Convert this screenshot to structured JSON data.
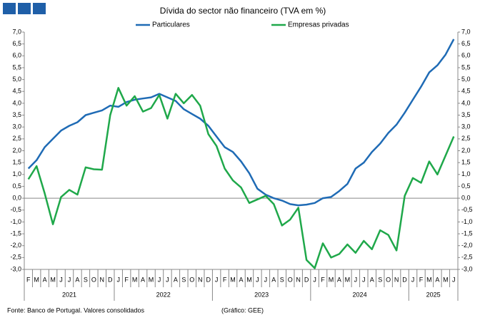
{
  "chart_data": {
    "type": "line",
    "title": "Dívida do sector não financeiro (TVA em %)",
    "categories": [
      "F",
      "M",
      "A",
      "M",
      "J",
      "J",
      "A",
      "S",
      "O",
      "N",
      "D",
      "J",
      "F",
      "M",
      "A",
      "M",
      "J",
      "J",
      "A",
      "S",
      "O",
      "N",
      "D",
      "J",
      "F",
      "M",
      "A",
      "M",
      "J",
      "J",
      "A",
      "S",
      "O",
      "N",
      "D",
      "J",
      "F",
      "M",
      "A",
      "M",
      "J",
      "J",
      "A",
      "S",
      "O",
      "N",
      "D",
      "J",
      "F",
      "M",
      "A",
      "M",
      "J"
    ],
    "years": [
      "2021",
      "2022",
      "2023",
      "2024",
      "2025"
    ],
    "series": [
      {
        "name": "Particulares",
        "color": "#1f6bb5",
        "values": [
          1.25,
          1.6,
          2.15,
          2.5,
          2.85,
          3.05,
          3.2,
          3.5,
          3.6,
          3.7,
          3.9,
          3.85,
          4.05,
          4.15,
          4.2,
          4.25,
          4.4,
          4.25,
          4.1,
          3.75,
          3.55,
          3.35,
          3.05,
          2.6,
          2.15,
          1.95,
          1.55,
          1.05,
          0.4,
          0.15,
          0.0,
          -0.1,
          -0.25,
          -0.3,
          -0.27,
          -0.2,
          0.0,
          0.05,
          0.3,
          0.6,
          1.25,
          1.5,
          1.95,
          2.3,
          2.75,
          3.1,
          3.6,
          4.15,
          4.7,
          5.3,
          5.6,
          6.05,
          6.7
        ]
      },
      {
        "name": "Empresas privadas",
        "color": "#1fa84a",
        "values": [
          0.8,
          1.35,
          0.2,
          -1.1,
          0.05,
          0.35,
          0.15,
          1.3,
          1.22,
          1.2,
          3.5,
          4.65,
          3.9,
          4.3,
          3.65,
          3.8,
          4.35,
          3.35,
          4.4,
          4.0,
          4.35,
          3.9,
          2.7,
          2.2,
          1.25,
          0.75,
          0.45,
          -0.2,
          -0.05,
          0.1,
          -0.25,
          -1.15,
          -0.9,
          -0.4,
          -2.6,
          -2.95,
          -1.9,
          -2.5,
          -2.35,
          -1.95,
          -2.3,
          -1.8,
          -2.15,
          -1.35,
          -1.55,
          -2.2,
          0.1,
          0.85,
          0.65,
          1.55,
          1.0,
          1.8,
          2.6
        ]
      }
    ],
    "ylim": [
      -3,
      7
    ],
    "yticks": [
      {
        "value": -3,
        "label": "-3,0"
      },
      {
        "value": -2.5,
        "label": "-2,5"
      },
      {
        "value": -2,
        "label": "-2,0"
      },
      {
        "value": -1.5,
        "label": "-1,5"
      },
      {
        "value": -1,
        "label": "-1,0"
      },
      {
        "value": -0.5,
        "label": "-0,5"
      },
      {
        "value": 0,
        "label": "0,0"
      },
      {
        "value": 0.5,
        "label": "0,5"
      },
      {
        "value": 1,
        "label": "1,0"
      },
      {
        "value": 1.5,
        "label": "1,5"
      },
      {
        "value": 2,
        "label": "2,0"
      },
      {
        "value": 2.5,
        "label": "2,5"
      },
      {
        "value": 3,
        "label": "3,0"
      },
      {
        "value": 3.5,
        "label": "3,5"
      },
      {
        "value": 4,
        "label": "4,0"
      },
      {
        "value": 4.5,
        "label": "4,5"
      },
      {
        "value": 5,
        "label": "5,0"
      },
      {
        "value": 5.5,
        "label": "5,5"
      },
      {
        "value": 6,
        "label": "6,0"
      },
      {
        "value": 6.5,
        "label": "6,5"
      },
      {
        "value": 7,
        "label": "7,0"
      }
    ],
    "y2lim": [
      -3,
      7
    ],
    "y2ticks": [
      {
        "value": -3,
        "label": "-3,0"
      },
      {
        "value": -2.5,
        "label": "-2,5"
      },
      {
        "value": -2,
        "label": "-2,0"
      },
      {
        "value": -1.5,
        "label": "-1,5"
      },
      {
        "value": -1,
        "label": "-1,0"
      },
      {
        "value": -0.5,
        "label": "-0,5"
      },
      {
        "value": 0,
        "label": "0,0"
      },
      {
        "value": 0.5,
        "label": "0,5"
      },
      {
        "value": 1,
        "label": "1,0"
      },
      {
        "value": 1.5,
        "label": "1,5"
      },
      {
        "value": 2,
        "label": "2,0"
      },
      {
        "value": 2.5,
        "label": "2,5"
      },
      {
        "value": 3,
        "label": "3,0"
      },
      {
        "value": 3.5,
        "label": "3,5"
      },
      {
        "value": 4,
        "label": "4,0"
      },
      {
        "value": 4.5,
        "label": "4,5"
      },
      {
        "value": 5,
        "label": "5,0"
      },
      {
        "value": 5.5,
        "label": "5,5"
      },
      {
        "value": 6,
        "label": "6,0"
      },
      {
        "value": 6.5,
        "label": "6,5"
      },
      {
        "value": 7,
        "label": "7,0"
      }
    ],
    "source": "Fonte: Banco de Portugal. Valores consolidados",
    "credit": "(Gráfico: GEE)"
  }
}
